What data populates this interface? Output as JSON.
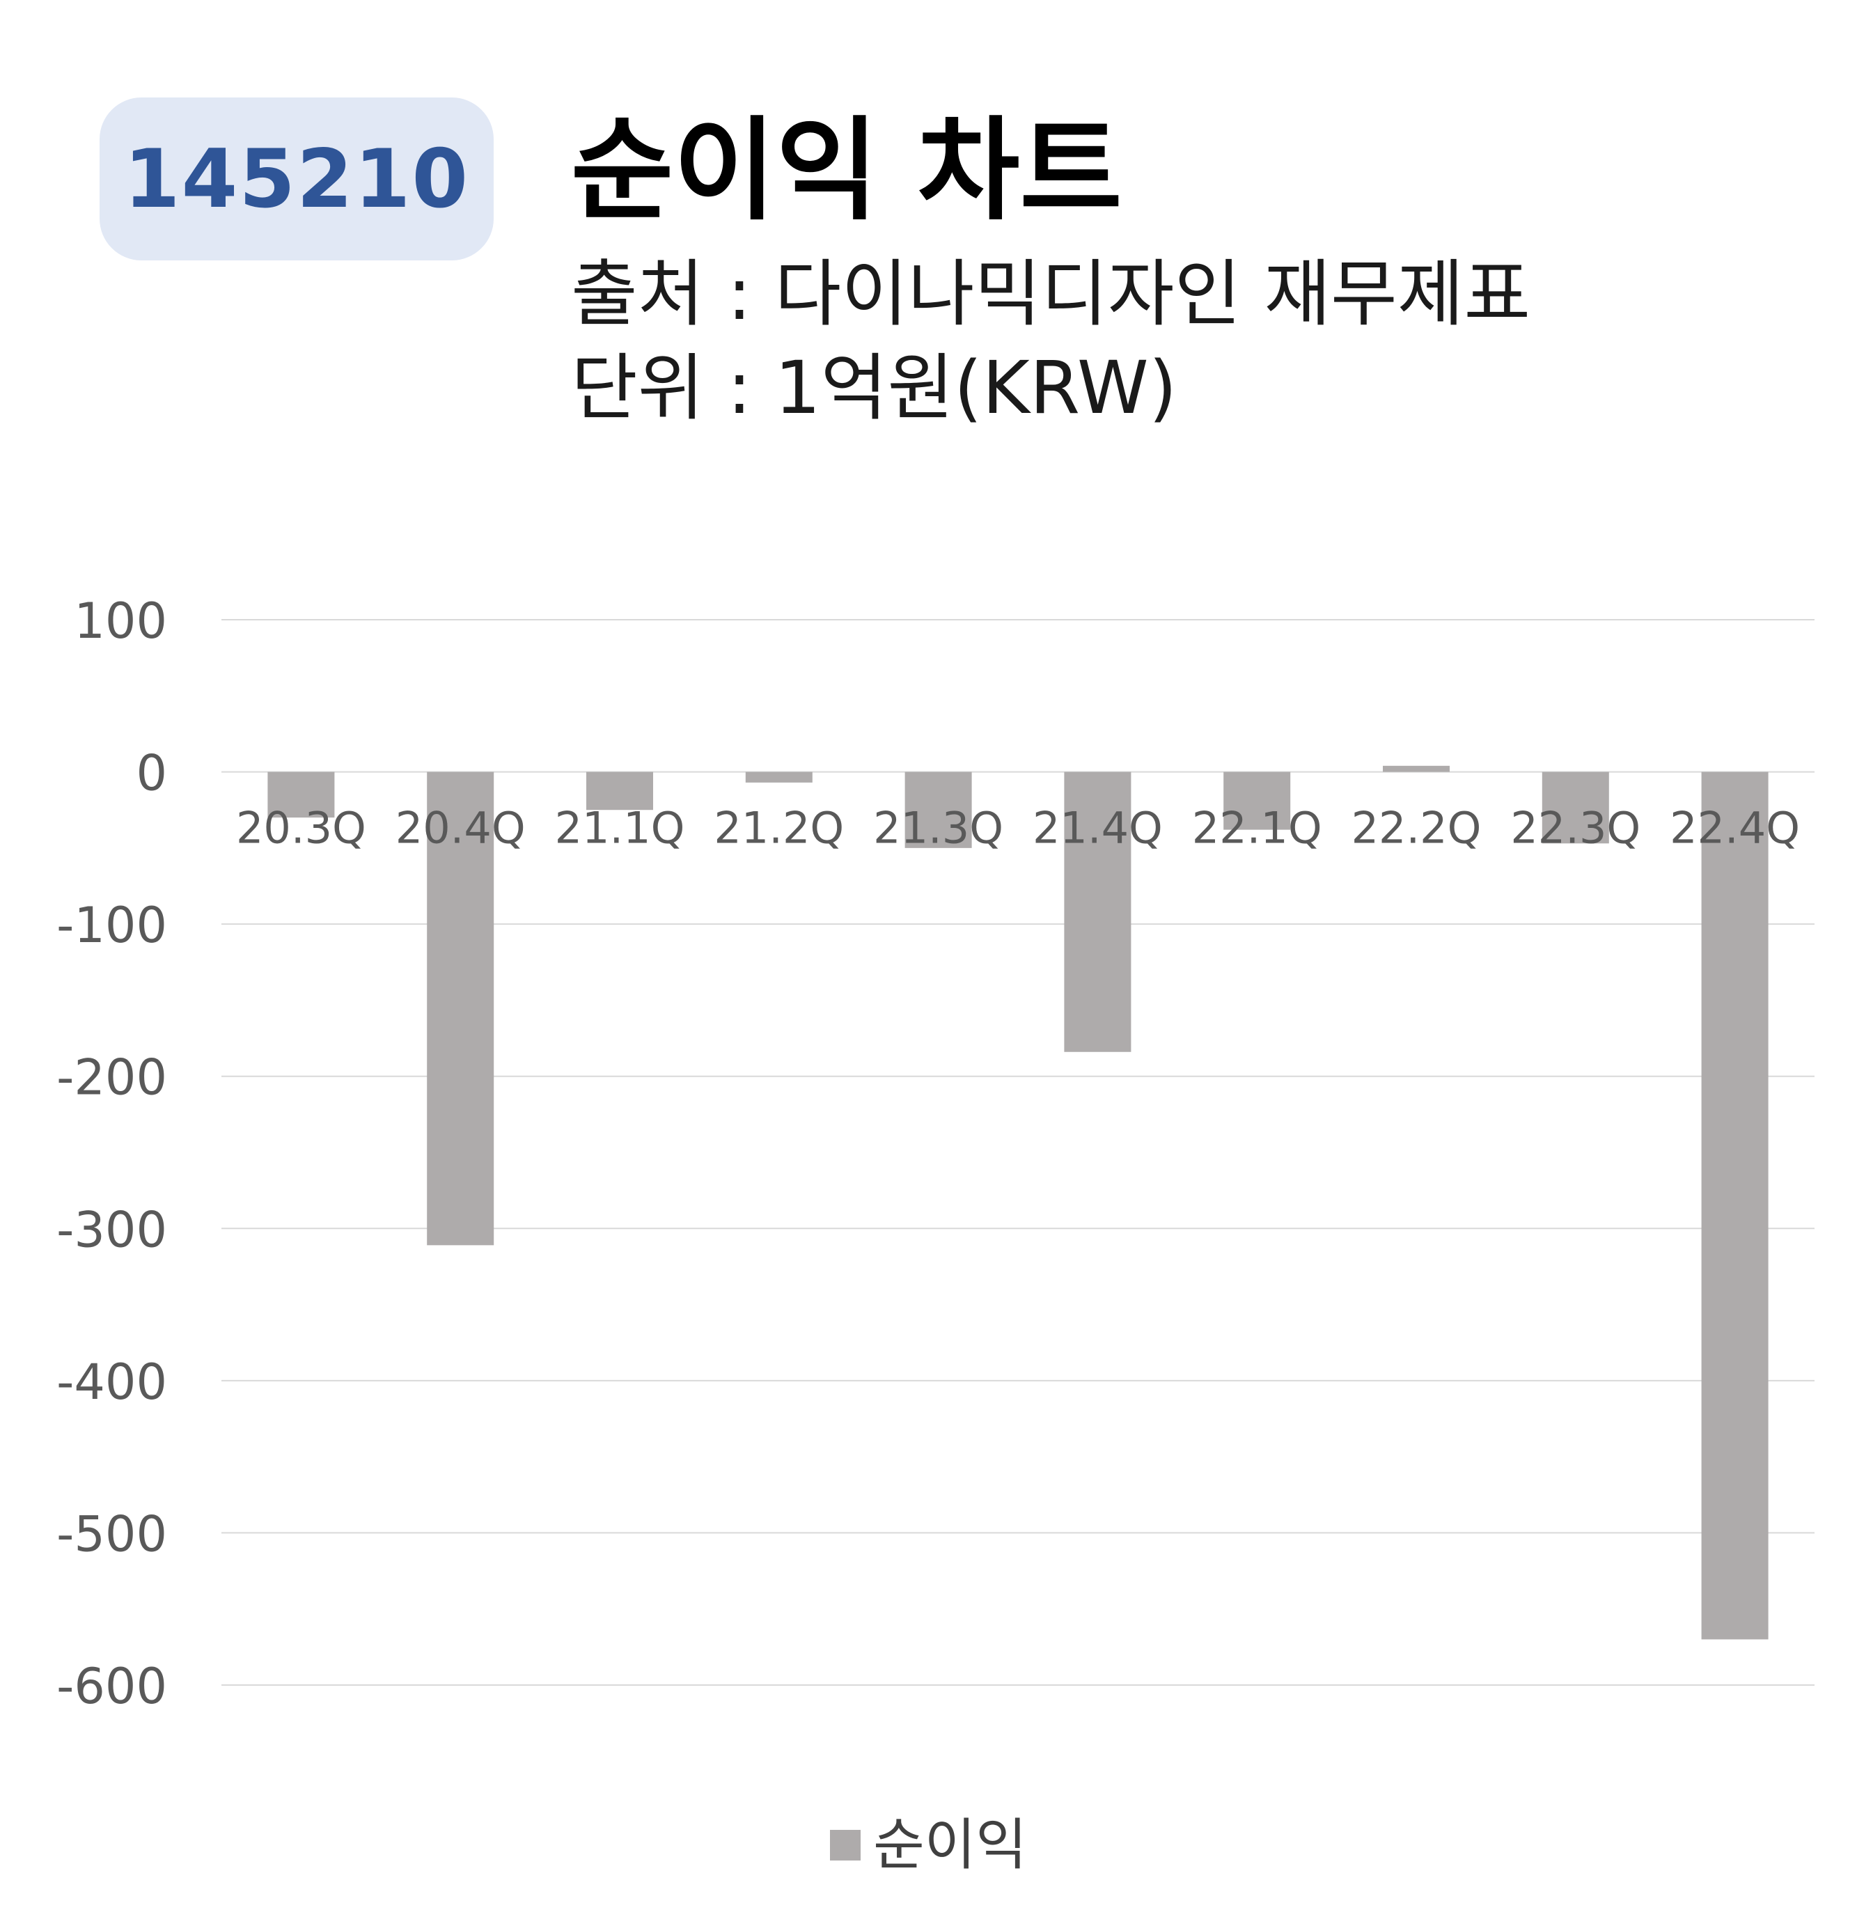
{
  "header": {
    "code": "145210",
    "title": "순이익 차트",
    "source_line": "출처 : 다이나믹디자인 재무제표",
    "unit_line": "단위 : 1억원(KRW)"
  },
  "legend": {
    "label": "순이익",
    "swatch_color": "#aeabab"
  },
  "colors": {
    "bar": "#aeabab",
    "grid": "#d9d9d9",
    "tick_text": "#595959",
    "badge_bg": "#e1e8f5",
    "badge_text": "#2f5597"
  },
  "chart_data": {
    "type": "bar",
    "categories": [
      "20.3Q",
      "20.4Q",
      "21.1Q",
      "21.2Q",
      "21.3Q",
      "21.4Q",
      "22.1Q",
      "22.2Q",
      "22.3Q",
      "22.4Q"
    ],
    "series": [
      {
        "name": "순이익",
        "values": [
          -30,
          -311,
          -25,
          -7,
          -50,
          -184,
          -38,
          4,
          -47,
          -570
        ]
      }
    ],
    "title": "순이익 차트",
    "xlabel": "",
    "ylabel": "",
    "ylim": [
      -600,
      100
    ],
    "yticks": [
      100,
      0,
      -100,
      -200,
      -300,
      -400,
      -500,
      -600
    ],
    "ytick_labels": [
      "100",
      "0",
      "-100",
      "-200",
      "-300",
      "-400",
      "-500",
      "-600"
    ],
    "grid": true,
    "legend_position": "bottom"
  }
}
